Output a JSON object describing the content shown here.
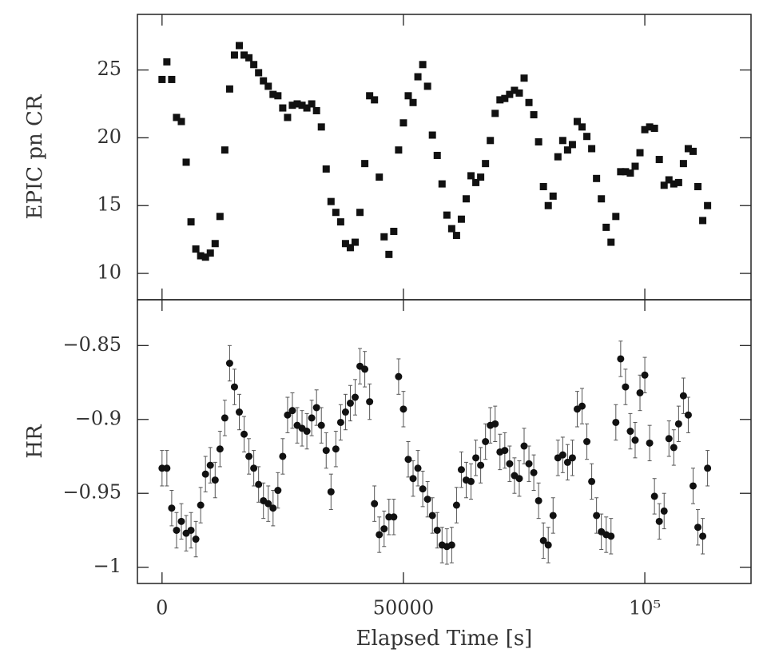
{
  "chart_data": {
    "type": "scatter",
    "xlabel": "Elapsed Time [s]",
    "xlim": [
      -5100,
      122000
    ],
    "xticks": [
      0,
      50000,
      {
        "value": 100000,
        "label": "10⁵"
      }
    ],
    "x": [
      0,
      1000,
      2000,
      3000,
      4000,
      5000,
      6000,
      7000,
      8000,
      9000,
      10000,
      11000,
      12000,
      13000,
      14000,
      15000,
      16000,
      17000,
      18000,
      19000,
      20000,
      21000,
      22000,
      23000,
      24000,
      25000,
      26000,
      27000,
      28000,
      29000,
      30000,
      31000,
      32000,
      33000,
      34000,
      35000,
      36000,
      37000,
      38000,
      39000,
      40000,
      41000,
      42000,
      43000,
      44000,
      45000,
      46000,
      47000,
      48000,
      49000,
      50000,
      51000,
      52000,
      53000,
      54000,
      55000,
      56000,
      57000,
      58000,
      59000,
      60000,
      61000,
      62000,
      63000,
      64000,
      65000,
      66000,
      67000,
      68000,
      69000,
      70000,
      71000,
      72000,
      73000,
      74000,
      75000,
      76000,
      77000,
      78000,
      79000,
      80000,
      81000,
      82000,
      83000,
      84000,
      85000,
      86000,
      87000,
      88000,
      89000,
      90000,
      91000,
      92000,
      93000,
      94000,
      95000,
      96000,
      97000,
      98000,
      99000,
      100000,
      101000,
      102000,
      103000,
      104000,
      105000,
      106000,
      107000,
      108000,
      109000,
      110000,
      111000,
      112000,
      113000
    ],
    "panels": [
      {
        "ylabel": "EPIC pn CR",
        "marker": "square",
        "color": "#111",
        "ylim": [
          8.06,
          29.1
        ],
        "yticks": [
          10,
          15,
          20,
          25
        ],
        "values": [
          24.3,
          25.6,
          24.3,
          21.5,
          21.2,
          18.2,
          13.8,
          11.8,
          11.3,
          11.2,
          11.5,
          12.2,
          14.2,
          19.1,
          23.6,
          26.1,
          26.8,
          26.1,
          25.9,
          25.4,
          24.8,
          24.2,
          23.8,
          23.2,
          23.1,
          22.2,
          21.5,
          22.4,
          22.5,
          22.4,
          22.2,
          22.5,
          22.0,
          20.8,
          17.7,
          15.3,
          14.5,
          13.8,
          12.2,
          11.9,
          12.3,
          14.5,
          18.1,
          23.1,
          22.8,
          17.1,
          12.7,
          11.4,
          13.1,
          19.1,
          21.1,
          23.1,
          22.6,
          24.5,
          25.4,
          23.8,
          20.2,
          18.7,
          16.6,
          14.3,
          13.3,
          12.8,
          14.0,
          15.5,
          17.2,
          16.7,
          17.1,
          18.1,
          19.8,
          21.8,
          22.8,
          22.9,
          23.2,
          23.5,
          23.3,
          24.4,
          22.6,
          21.7,
          19.7,
          16.4,
          15.0,
          15.7,
          18.6,
          19.8,
          19.1,
          19.5,
          21.2,
          20.8,
          20.1,
          19.2,
          17.0,
          15.5,
          13.4,
          12.3,
          14.2,
          17.5,
          17.5,
          17.4,
          17.9,
          18.9,
          20.6,
          20.8,
          20.7,
          18.4,
          16.5,
          16.9,
          16.6,
          16.7,
          18.1,
          19.2,
          19.0,
          16.4,
          13.9,
          15.0
        ]
      },
      {
        "ylabel": "HR",
        "marker": "circle",
        "color": "#111",
        "yerr": 0.012,
        "ylim": [
          -1.011,
          -0.819
        ],
        "yticks": [
          {
            "value": -0.85,
            "label": "−0.85"
          },
          {
            "value": -0.9,
            "label": "−0.9"
          },
          {
            "value": -0.95,
            "label": "−0.95"
          },
          {
            "value": -1,
            "label": "−1"
          }
        ],
        "values": [
          -0.933,
          -0.933,
          -0.96,
          -0.975,
          -0.969,
          -0.977,
          -0.975,
          -0.981,
          -0.958,
          -0.937,
          -0.931,
          -0.941,
          -0.92,
          -0.899,
          -0.862,
          -0.878,
          -0.895,
          -0.91,
          -0.925,
          -0.933,
          -0.944,
          -0.955,
          -0.957,
          -0.96,
          -0.948,
          -0.925,
          -0.897,
          -0.894,
          -0.904,
          -0.906,
          -0.908,
          -0.899,
          -0.892,
          -0.904,
          -0.921,
          -0.949,
          -0.92,
          -0.902,
          -0.895,
          -0.889,
          -0.885,
          -0.864,
          -0.866,
          -0.888,
          -0.957,
          -0.978,
          -0.974,
          -0.966,
          -0.966,
          -0.871,
          -0.893,
          -0.927,
          -0.94,
          -0.933,
          -0.947,
          -0.954,
          -0.965,
          -0.975,
          -0.985,
          -0.986,
          -0.985,
          -0.958,
          -0.934,
          -0.941,
          -0.942,
          -0.926,
          -0.931,
          -0.915,
          -0.904,
          -0.903,
          -0.922,
          -0.921,
          -0.93,
          -0.938,
          -0.94,
          -0.918,
          -0.93,
          -0.936,
          -0.955,
          -0.982,
          -0.985,
          -0.965,
          -0.926,
          -0.924,
          -0.929,
          -0.926,
          -0.893,
          -0.891,
          -0.915,
          -0.942,
          -0.965,
          -0.976,
          -0.978,
          -0.979,
          -0.902,
          -0.859,
          -0.878,
          -0.908,
          -0.914,
          -0.882,
          -0.87,
          -0.916,
          -0.952,
          -0.969,
          -0.962,
          -0.913,
          -0.919,
          -0.903,
          -0.884,
          -0.897,
          -0.945,
          -0.973,
          -0.979,
          -0.933
        ]
      }
    ]
  }
}
